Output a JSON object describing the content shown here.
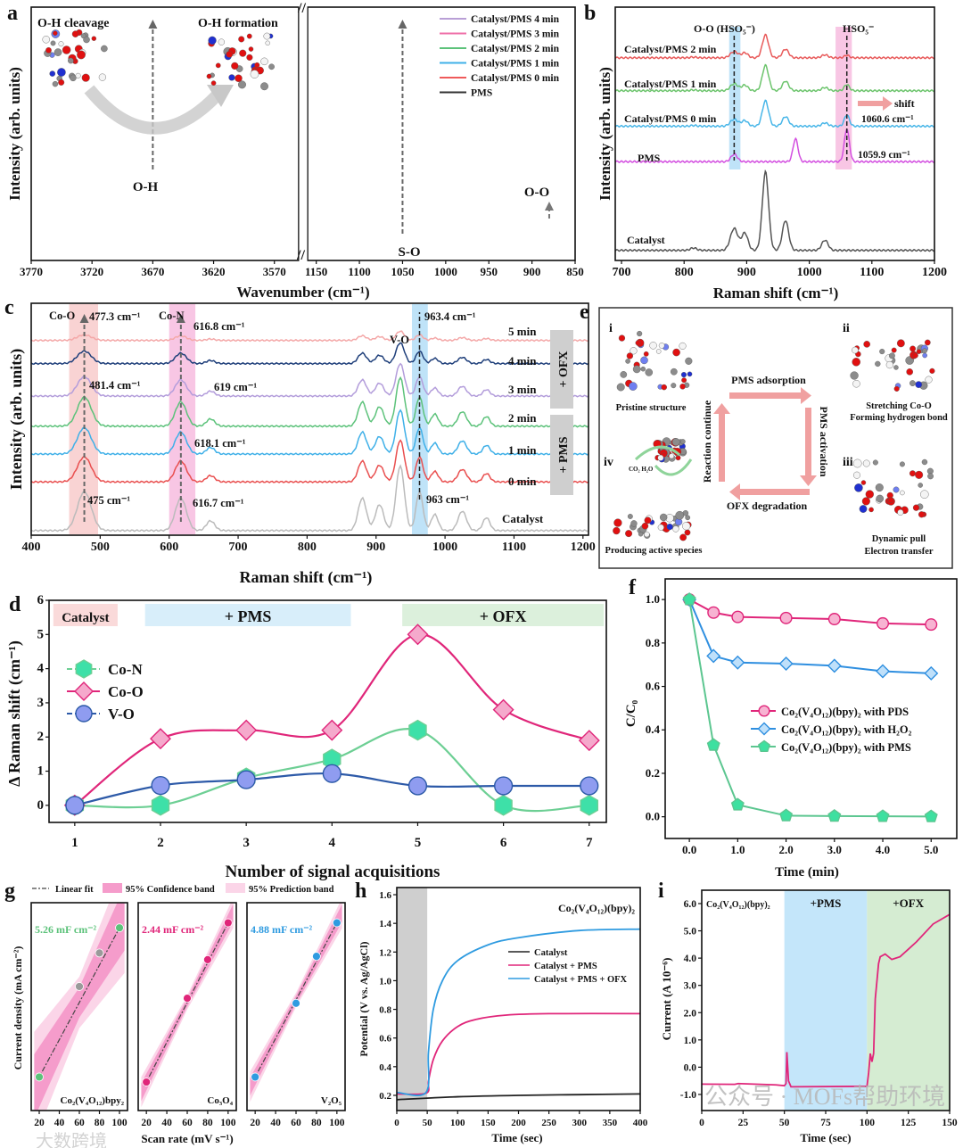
{
  "figure": {
    "panel_labels": [
      "a",
      "b",
      "c",
      "d",
      "e",
      "f",
      "g",
      "h",
      "i"
    ],
    "watermarks": [
      "公众号 · MOFs帮助环境",
      "大数跨境"
    ]
  },
  "diagram_e": {
    "steps": [
      {
        "numeral": "i",
        "caption": [
          "Pristine structure"
        ]
      },
      {
        "numeral": "ii",
        "caption": [
          "Stretching Co-O",
          "Forming hydrogen bond"
        ]
      },
      {
        "numeral": "iii",
        "caption": [
          "Dynamic pull",
          "Electron transfer"
        ]
      },
      {
        "numeral": "iv",
        "caption": [
          "Producing active species"
        ]
      }
    ],
    "arrows": [
      "PMS adsorption",
      "PMS activation",
      "OFX degradation",
      "Reaction continue"
    ],
    "products_label": "CO₂ H₂O",
    "arrow_color": "#f0a0a0"
  },
  "chart_data": [
    {
      "id": "a",
      "type": "line",
      "broken_x_axis": true,
      "xlabel": "Wavenumber (cm⁻¹)",
      "ylabel": "Intensity (arb. units)",
      "left": {
        "xlim": [
          3770,
          3550
        ],
        "ylim": [
          0,
          10
        ],
        "xticks": [
          "3770",
          "3720",
          "3670",
          "3620",
          "3570"
        ],
        "shape": [
          [
            3670,
            1,
            27
          ],
          [
            3748,
            0.08,
            6
          ],
          [
            3735,
            0.06,
            5
          ]
        ]
      },
      "right": {
        "xlim": [
          1160,
          850
        ],
        "ylim": [
          0,
          10
        ],
        "xticks": [
          "1150",
          "1100",
          "1050",
          "1000",
          "950",
          "900",
          "850"
        ],
        "shape": [
          [
            1050,
            1,
            13
          ],
          [
            1030,
            0.55,
            7
          ],
          [
            1008,
            0.28,
            7
          ],
          [
            878,
            0.14,
            5
          ],
          [
            893,
            0.09,
            4
          ]
        ]
      },
      "series": [
        {
          "name": "Catalyst/PMS 4 min",
          "color": "#b99fd6",
          "left": {
            "base": 1.0,
            "amp": 7.2
          },
          "right": {
            "base": 0.8,
            "amp": 8.5
          }
        },
        {
          "name": "Catalyst/PMS 3 min",
          "color": "#ef6fa8",
          "left": {
            "base": 1.7,
            "amp": 5.6
          },
          "right": {
            "base": 0.8,
            "amp": 7.4
          }
        },
        {
          "name": "Catalyst/PMS 2 min",
          "color": "#5cc27a",
          "left": {
            "base": 1.5,
            "amp": 5.1
          },
          "right": {
            "base": 0.8,
            "amp": 6.4
          }
        },
        {
          "name": "Catalyst/PMS 1 min",
          "color": "#3fb0e8",
          "left": {
            "base": 3.4,
            "amp": 2.6
          },
          "right": {
            "base": 0.8,
            "amp": 5.3
          }
        },
        {
          "name": "Catalyst/PMS 0 min",
          "color": "#ef5a5a",
          "left": {
            "base": 2.2,
            "amp": 3.0
          },
          "right": {
            "base": 0.8,
            "amp": 4.2
          }
        },
        {
          "name": "PMS",
          "color": "#333333",
          "left": {
            "base": 4.1,
            "amp": 0.35
          },
          "right": {
            "base": 0.9,
            "amp": 0.3
          }
        }
      ],
      "annotations": [
        "O-H cleavage",
        "O-H formation",
        "O-H",
        "S-O",
        "O-O"
      ]
    },
    {
      "id": "b",
      "type": "line",
      "xlabel": "Raman shift (cm⁻¹)",
      "ylabel": "Intensity (arb. units)",
      "xlim": [
        690,
        1200
      ],
      "ylim": [
        0,
        10
      ],
      "xticks": [
        "700",
        "800",
        "900",
        "1000",
        "1100",
        "1200"
      ],
      "shape": [
        [
          930,
          1,
          5
        ],
        [
          880,
          0.28,
          6
        ],
        [
          897,
          0.22,
          5
        ],
        [
          962,
          0.38,
          5
        ],
        [
          1025,
          0.13,
          5
        ],
        [
          815,
          0.03,
          5
        ]
      ],
      "series": [
        {
          "name": "Catalyst/PMS 2 min",
          "color": "#e85a5a",
          "base": 8.0,
          "amp": 0.9,
          "extra": [
            [
              1060,
              0.1,
              4
            ]
          ]
        },
        {
          "name": "Catalyst/PMS 1 min",
          "color": "#6cc46c",
          "base": 6.7,
          "amp": 1.0,
          "extra": [
            [
              1060,
              0.25,
              4
            ]
          ]
        },
        {
          "name": "Catalyst/PMS 0 min",
          "color": "#48b6e8",
          "base": 5.3,
          "amp": 1.0,
          "extra": [
            [
              1060,
              0.45,
              4
            ]
          ]
        },
        {
          "name": "PMS",
          "color": "#d34fe0",
          "base": 3.9,
          "amp": 0,
          "extra": [
            [
              1060,
              1.3,
              4
            ],
            [
              978,
              0.9,
              4
            ],
            [
              880,
              0.3,
              5
            ]
          ]
        },
        {
          "name": "Catalyst",
          "color": "#555555",
          "base": 0.4,
          "amp": 3.1,
          "extra": []
        }
      ],
      "bands": [
        {
          "from": 872,
          "to": 890,
          "color": "#bfe3f8"
        },
        {
          "from": 1042,
          "to": 1068,
          "color": "#f8c6e4"
        }
      ],
      "annotations": [
        "O-O (HSO₅⁻)",
        "HSO₅⁻",
        "shift",
        "1060.6 cm⁻¹",
        "1059.9 cm⁻¹"
      ]
    },
    {
      "id": "c",
      "type": "line",
      "xlabel": "Raman shift (cm⁻¹)",
      "ylabel": "Intensity (arb. units)",
      "xlim": [
        400,
        1208
      ],
      "ylim": [
        0,
        10
      ],
      "xticks": [
        "400",
        "500",
        "600",
        "700",
        "800",
        "900",
        "1000",
        "1100",
        "1200"
      ],
      "shape": [
        [
          477,
          0.6,
          10
        ],
        [
          617,
          0.5,
          8
        ],
        [
          660,
          0.15,
          6
        ],
        [
          880,
          0.5,
          6
        ],
        [
          905,
          0.4,
          6
        ],
        [
          935,
          1,
          6
        ],
        [
          963,
          0.6,
          5
        ],
        [
          985,
          0.25,
          5
        ],
        [
          1025,
          0.3,
          6
        ],
        [
          1060,
          0.2,
          5
        ]
      ],
      "series": [
        {
          "name": "5 min",
          "color": "#f4a8a8",
          "base": 8.4,
          "amp": 0.4
        },
        {
          "name": "4 min",
          "color": "#1f3f7a",
          "base": 7.4,
          "amp": 0.9
        },
        {
          "name": "3 min",
          "color": "#b39ddb",
          "base": 6.0,
          "amp": 1.4
        },
        {
          "name": "2 min",
          "color": "#5cc27a",
          "base": 4.7,
          "amp": 2.1
        },
        {
          "name": "1 min",
          "color": "#3fb0e8",
          "base": 3.5,
          "amp": 1.9
        },
        {
          "name": "0 min",
          "color": "#e94f4f",
          "base": 2.3,
          "amp": 1.8
        },
        {
          "name": "Catalyst",
          "color": "#bbbbbb",
          "base": 0.2,
          "amp": 2.8
        }
      ],
      "bands": [
        {
          "from": 455,
          "to": 497,
          "color": "#f9d3d3"
        },
        {
          "from": 600,
          "to": 638,
          "color": "#f8c6e4"
        },
        {
          "from": 952,
          "to": 975,
          "color": "#bfe3f8"
        }
      ],
      "stage_labels": [
        "+ OFX",
        "+ PMS"
      ],
      "annotations": [
        "Co-O",
        "477.3 cm⁻¹",
        "Co-N",
        "616.8 cm⁻¹",
        "V-O",
        "963.4 cm⁻¹",
        "481.4 cm⁻¹",
        "619 cm⁻¹",
        "618.1 cm⁻¹",
        "475 cm⁻¹",
        "616.7 cm⁻¹",
        "963 cm⁻¹"
      ]
    },
    {
      "id": "d",
      "type": "line",
      "xlabel": "Number of signal acquisitions",
      "ylabel": "Δ Raman shift (cm⁻¹)",
      "xlim": [
        0.7,
        7.2
      ],
      "ylim": [
        -0.5,
        6.0
      ],
      "xticks": [
        "1",
        "2",
        "3",
        "4",
        "5",
        "6",
        "7"
      ],
      "yticks": [
        "0",
        "1",
        "2",
        "3",
        "4",
        "5",
        "6"
      ],
      "x": [
        1,
        2,
        3,
        4,
        5,
        6,
        7
      ],
      "series": [
        {
          "name": "Co-N",
          "color": "#6dcf94",
          "fill": "#3ee0a8",
          "marker": "hexagon",
          "values": [
            0,
            0,
            0.8,
            1.35,
            2.2,
            0,
            0
          ]
        },
        {
          "name": "Co-O",
          "color": "#e0267a",
          "fill": "#f5a9cc",
          "marker": "diamond",
          "values": [
            0,
            1.95,
            2.2,
            2.2,
            5.0,
            2.8,
            1.9
          ]
        },
        {
          "name": "V-O",
          "color": "#2d5aa8",
          "fill": "#8f9cf0",
          "marker": "circle",
          "values": [
            0,
            0.58,
            0.75,
            0.93,
            0.57,
            0.57,
            0.57
          ]
        }
      ],
      "regions": [
        {
          "label": "Catalyst",
          "from": 0.75,
          "to": 1.5,
          "color": "#fadada"
        },
        {
          "label": "+ PMS",
          "from": 1.82,
          "to": 4.22,
          "color": "#d8eefa"
        },
        {
          "label": "+ OFX",
          "from": 4.82,
          "to": 7.17,
          "color": "#dcf0dc"
        }
      ],
      "legend_position": "left"
    },
    {
      "id": "f",
      "type": "line",
      "xlabel": "Time (min)",
      "ylabel": "C/C₀",
      "xlim": [
        -0.5,
        5.53
      ],
      "ylim": [
        -0.1,
        1.095
      ],
      "xticks": [
        "0.0",
        "1.0",
        "2.0",
        "3.0",
        "4.0",
        "5.0"
      ],
      "yticks": [
        "0.0",
        "0.2",
        "0.4",
        "0.6",
        "0.8",
        "1.0"
      ],
      "x": [
        0,
        0.5,
        1,
        2,
        3,
        4,
        5
      ],
      "series": [
        {
          "name": "Co₂(V₄O₁₂)(bpy)₂ with PDS",
          "color": "#e0267a",
          "fill": "#f7b3d2",
          "marker": "circle",
          "values": [
            1.0,
            0.94,
            0.92,
            0.915,
            0.91,
            0.89,
            0.885
          ]
        },
        {
          "name": "Co₂(V₄O₁₂)(bpy)₂ with H₂O₂",
          "color": "#2f8fe0",
          "fill": "#bfe0fa",
          "marker": "diamond",
          "values": [
            1.0,
            0.74,
            0.71,
            0.705,
            0.695,
            0.67,
            0.66
          ]
        },
        {
          "name": "Co₂(V₄O₁₂)(bpy)₂ with PMS",
          "color": "#5cc690",
          "fill": "#3ee0a0",
          "marker": "pentagon",
          "values": [
            1.0,
            0.33,
            0.055,
            0.005,
            0.003,
            0.002,
            0.001
          ]
        }
      ],
      "legend_position": "center-right"
    },
    {
      "id": "g",
      "type": "scatter",
      "xlabel": "Scan rate (mV s⁻¹)",
      "ylabel": "Current density (mA cm⁻²)",
      "legend": [
        "Linear fit",
        "95% Confidence band",
        "95% Prediction band"
      ],
      "xlim": [
        12,
        108
      ],
      "xticks": [
        "20",
        "40",
        "60",
        "80",
        "100"
      ],
      "x": [
        20,
        60,
        80,
        100
      ],
      "subplots": [
        {
          "name": "Co₂(V₄O₁₂)bpy₂",
          "capacitance": "5.26 mF cm⁻²",
          "color": "#5cc27a",
          "point_color": "#9a9a9a",
          "y_relative": [
            0.08,
            0.62,
            0.82,
            0.97
          ],
          "band": 0.09
        },
        {
          "name": "Co₃O₄",
          "capacitance": "2.44 mF cm⁻²",
          "color": "#e0267a",
          "point_color": "#e0267a",
          "y_relative": [
            0.05,
            0.55,
            0.78,
            1.0
          ],
          "band": 0.025
        },
        {
          "name": "V₂O₅",
          "capacitance": "4.88 mF cm⁻²",
          "color": "#2f9be0",
          "point_color": "#2f9be0",
          "y_relative": [
            0.08,
            0.52,
            0.8,
            1.0
          ],
          "band": 0.025
        }
      ]
    },
    {
      "id": "h",
      "type": "line",
      "title": "Co₂(V₄O₁₂)(bpy)₂",
      "xlabel": "Time (sec)",
      "ylabel": "Potential (V vs. Ag/AgCl)",
      "xlim": [
        0,
        400
      ],
      "ylim": [
        0.094,
        1.65
      ],
      "xticks": [
        "0",
        "50",
        "100",
        "150",
        "200",
        "250",
        "300",
        "350",
        "400"
      ],
      "yticks": [
        "0.2",
        "0.4",
        "0.6",
        "0.8",
        "1.0",
        "1.2",
        "1.4",
        "1.6"
      ],
      "shaded_region": {
        "from": 0,
        "to": 50,
        "color": "#cfcfcf"
      },
      "series": [
        {
          "name": "Catalyst",
          "color": "#222222",
          "points": [
            [
              0,
              0.17
            ],
            [
              100,
              0.19
            ],
            [
              200,
              0.2
            ],
            [
              300,
              0.205
            ],
            [
              400,
              0.21
            ]
          ]
        },
        {
          "name": "Catalyst + PMS",
          "color": "#e0267a",
          "points": [
            [
              0,
              0.21
            ],
            [
              48,
              0.215
            ],
            [
              52,
              0.3
            ],
            [
              60,
              0.45
            ],
            [
              75,
              0.58
            ],
            [
              100,
              0.68
            ],
            [
              130,
              0.73
            ],
            [
              180,
              0.76
            ],
            [
              250,
              0.77
            ],
            [
              400,
              0.77
            ]
          ]
        },
        {
          "name": "Catalyst + PMS + OFX",
          "color": "#2f9be0",
          "points": [
            [
              0,
              0.22
            ],
            [
              48,
              0.22
            ],
            [
              52,
              0.5
            ],
            [
              60,
              0.8
            ],
            [
              75,
              1.0
            ],
            [
              100,
              1.14
            ],
            [
              150,
              1.25
            ],
            [
              200,
              1.3
            ],
            [
              300,
              1.35
            ],
            [
              400,
              1.36
            ]
          ]
        }
      ],
      "legend_position": "center-right"
    },
    {
      "id": "i",
      "type": "line",
      "title": "Co₂(V₄O₁₂)(bpy)₂",
      "xlabel": "Time (sec)",
      "ylabel": "Current (A 10⁻⁶)",
      "xlim": [
        0,
        150
      ],
      "ylim": [
        -1.59,
        6.49
      ],
      "xticks": [
        "0",
        "25",
        "50",
        "75",
        "100",
        "125",
        "150"
      ],
      "yticks": [
        "-1.0",
        "0.0",
        "1.0",
        "2.0",
        "3.0",
        "4.0",
        "5.0",
        "6.0"
      ],
      "regions": [
        {
          "label": "+PMS",
          "from": 50,
          "to": 100,
          "color": "#c4e6fa"
        },
        {
          "label": "+OFX",
          "from": 100,
          "to": 150,
          "color": "#d5ecd2"
        }
      ],
      "series": [
        {
          "name": "current",
          "color": "#e0267a",
          "points": [
            [
              0,
              -0.62
            ],
            [
              20,
              -0.63
            ],
            [
              22,
              -0.6
            ],
            [
              45,
              -0.65
            ],
            [
              50,
              -0.68
            ],
            [
              51,
              -0.6
            ],
            [
              51.5,
              0.55
            ],
            [
              52.5,
              -0.5
            ],
            [
              54,
              -0.72
            ],
            [
              100,
              -0.7
            ],
            [
              101,
              -0.2
            ],
            [
              102,
              0.5
            ],
            [
              103,
              0.2
            ],
            [
              104,
              0.5
            ],
            [
              105,
              2.5
            ],
            [
              107,
              3.8
            ],
            [
              108,
              4.05
            ],
            [
              111,
              4.15
            ],
            [
              115,
              3.95
            ],
            [
              120,
              4.05
            ],
            [
              130,
              4.6
            ],
            [
              140,
              5.25
            ],
            [
              150,
              5.6
            ]
          ]
        }
      ]
    }
  ]
}
